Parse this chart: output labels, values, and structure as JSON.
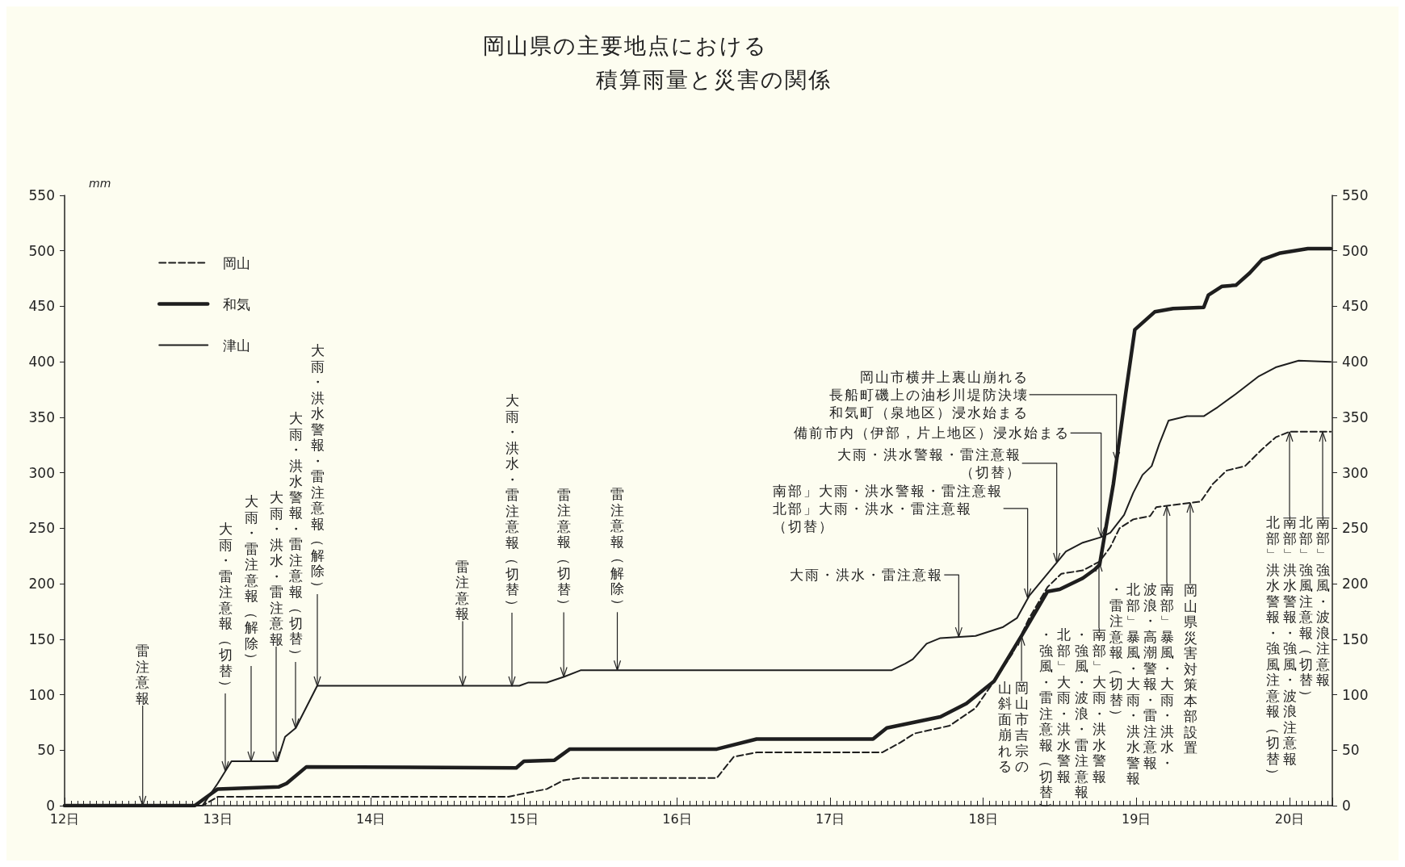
{
  "chart_data": {
    "type": "line",
    "title": "岡山県の主要地点における積算雨量と災害の関係",
    "ylabel": "mm",
    "xlim": [
      12,
      20.28
    ],
    "xticks": [
      {
        "value": 12,
        "label": "12日"
      },
      {
        "value": 13,
        "label": "13日"
      },
      {
        "value": 14,
        "label": "14日"
      },
      {
        "value": 15,
        "label": "15日"
      },
      {
        "value": 16,
        "label": "16日"
      },
      {
        "value": 17,
        "label": "17日"
      },
      {
        "value": 18,
        "label": "18日"
      },
      {
        "value": 19,
        "label": "19日"
      },
      {
        "value": 20,
        "label": "20日"
      }
    ],
    "ylim": [
      0,
      550
    ],
    "yticks": [
      0,
      50,
      100,
      150,
      200,
      250,
      300,
      350,
      400,
      450,
      500,
      550
    ],
    "y2lim": [
      0,
      550
    ],
    "y2ticks": [
      0,
      50,
      100,
      150,
      200,
      250,
      300,
      350,
      400,
      450,
      500,
      550
    ],
    "grid": false,
    "legend": "top left",
    "marker": "none",
    "series": [
      {
        "name": "岡山",
        "color": "#1e1e1e",
        "line_style": "dashed",
        "x": [
          12,
          12.9,
          13.0,
          14.9,
          15.0,
          15.15,
          15.26,
          15.37,
          16.26,
          16.37,
          16.52,
          17.34,
          17.46,
          17.55,
          17.78,
          17.95,
          18.07,
          18.19,
          18.3,
          18.42,
          18.51,
          18.65,
          18.76,
          18.83,
          18.89,
          18.98,
          19.09,
          19.13,
          19.3,
          19.42,
          19.5,
          19.59,
          19.71,
          19.82,
          19.91,
          20.0,
          20.27
        ],
        "values": [
          0,
          0,
          8,
          8,
          11,
          15,
          23,
          25,
          25,
          44,
          48,
          48,
          57,
          65,
          72,
          88,
          112,
          137,
          169,
          197,
          209,
          212,
          220,
          233,
          250,
          258,
          261,
          269,
          272,
          274,
          290,
          302,
          306,
          321,
          332,
          337,
          337
        ]
      },
      {
        "name": "和気",
        "color": "#1e1e1e",
        "line_style": "solid",
        "x": [
          12,
          12.85,
          12.95,
          13.0,
          13.4,
          13.45,
          13.58,
          14.95,
          15.0,
          15.2,
          15.3,
          16.26,
          16.52,
          17.28,
          17.37,
          17.72,
          17.89,
          18.07,
          18.25,
          18.42,
          18.5,
          18.65,
          18.73,
          18.76,
          18.85,
          18.93,
          18.99,
          19.12,
          19.24,
          19.44,
          19.47,
          19.56,
          19.65,
          19.74,
          19.82,
          19.94,
          20.12,
          20.27
        ],
        "values": [
          0,
          0,
          10,
          15,
          17,
          20,
          35,
          34,
          40,
          41,
          51,
          51,
          60,
          60,
          70,
          80,
          92,
          112,
          153,
          193,
          195,
          205,
          213,
          217,
          290,
          371,
          429,
          445,
          448,
          449,
          460,
          468,
          469,
          480,
          492,
          498,
          502,
          502
        ]
      },
      {
        "name": "津山",
        "color": "#1e1e1e",
        "line_style": "solid",
        "x": [
          12,
          12.9,
          13.0,
          13.09,
          13.39,
          13.44,
          13.51,
          13.65,
          14.97,
          15.03,
          15.15,
          15.26,
          15.37,
          17.4,
          17.49,
          17.54,
          17.63,
          17.72,
          17.95,
          18.13,
          18.22,
          18.3,
          18.42,
          18.54,
          18.65,
          18.77,
          18.83,
          18.92,
          18.98,
          19.04,
          19.1,
          19.15,
          19.21,
          19.33,
          19.44,
          19.53,
          19.65,
          19.8,
          19.91,
          20.06,
          20.27
        ],
        "values": [
          0,
          0,
          20,
          40,
          40,
          62,
          70,
          108,
          108,
          111,
          111,
          116,
          122,
          122,
          128,
          132,
          146,
          151,
          153,
          161,
          169,
          189,
          209,
          229,
          237,
          242,
          246,
          262,
          282,
          298,
          306,
          326,
          347,
          351,
          351,
          359,
          371,
          387,
          395,
          401,
          400
        ]
      }
    ],
    "annotations": [
      {
        "text": "岡山市横井上裏山崩れる長船町磯上の油杉川堤防決壊和気町（泉地区）浸水始まる",
        "x": 18.87,
        "y": 310
      },
      {
        "text": "備前市内（伊部，片上地区）浸水始まる",
        "x": 18.77,
        "y": 242
      },
      {
        "text": "大雨・洪水警報・雷注意報（切替）",
        "x": 18.48,
        "y": 219
      },
      {
        "text": "南部」大雨・洪水警報・雷注意報北部」大雨・洪水・雷注意報（切替）",
        "x": 18.29,
        "y": 187
      },
      {
        "text": "大雨・洪水・雷注意報",
        "x": 17.84,
        "y": 152
      },
      {
        "text": "雷注意報",
        "x": 12.51,
        "y": 0
      },
      "大雨・雷注意報（切替）",
      "大雨・雷注意報（解除）",
      "大雨・洪水・雷注意報",
      "大雨・洪水警報・雷注意報（切替）",
      "大雨・洪水警報・雷注意報（解除）",
      {
        "text": "雷注意報",
        "x": 14.6,
        "y": 108
      },
      "大雨・洪水・雷注意報（切替）",
      {
        "text": "雷注意報（切替）",
        "x": 15.26,
        "y": 116
      },
      {
        "text": "雷注意報（解除）",
        "x": 15.61,
        "y": 122
      },
      {
        "text": "岡山市吉宗の",
        "x": 18.25,
        "y": 153
      },
      "山斜面崩れる",
      "南部」大雨・洪水警報",
      "・強風・波浪・雷注意報",
      "北部」大雨・洪水警報",
      "・強風・雷注意報（切替）",
      "南部」暴風・大雨・洪水・",
      "波浪・高潮警報・雷注意報",
      "北部」暴風・大雨・洪水警報",
      "・雷注意報（切替）",
      "岡山県災害対策本部設置",
      "南部」洪水警報・強風・波浪注意報",
      "北部」洪水警報・強風注意報（切替）",
      "南部」強風・波浪注意報",
      "北部」強風注意報（切替）"
    ]
  }
}
